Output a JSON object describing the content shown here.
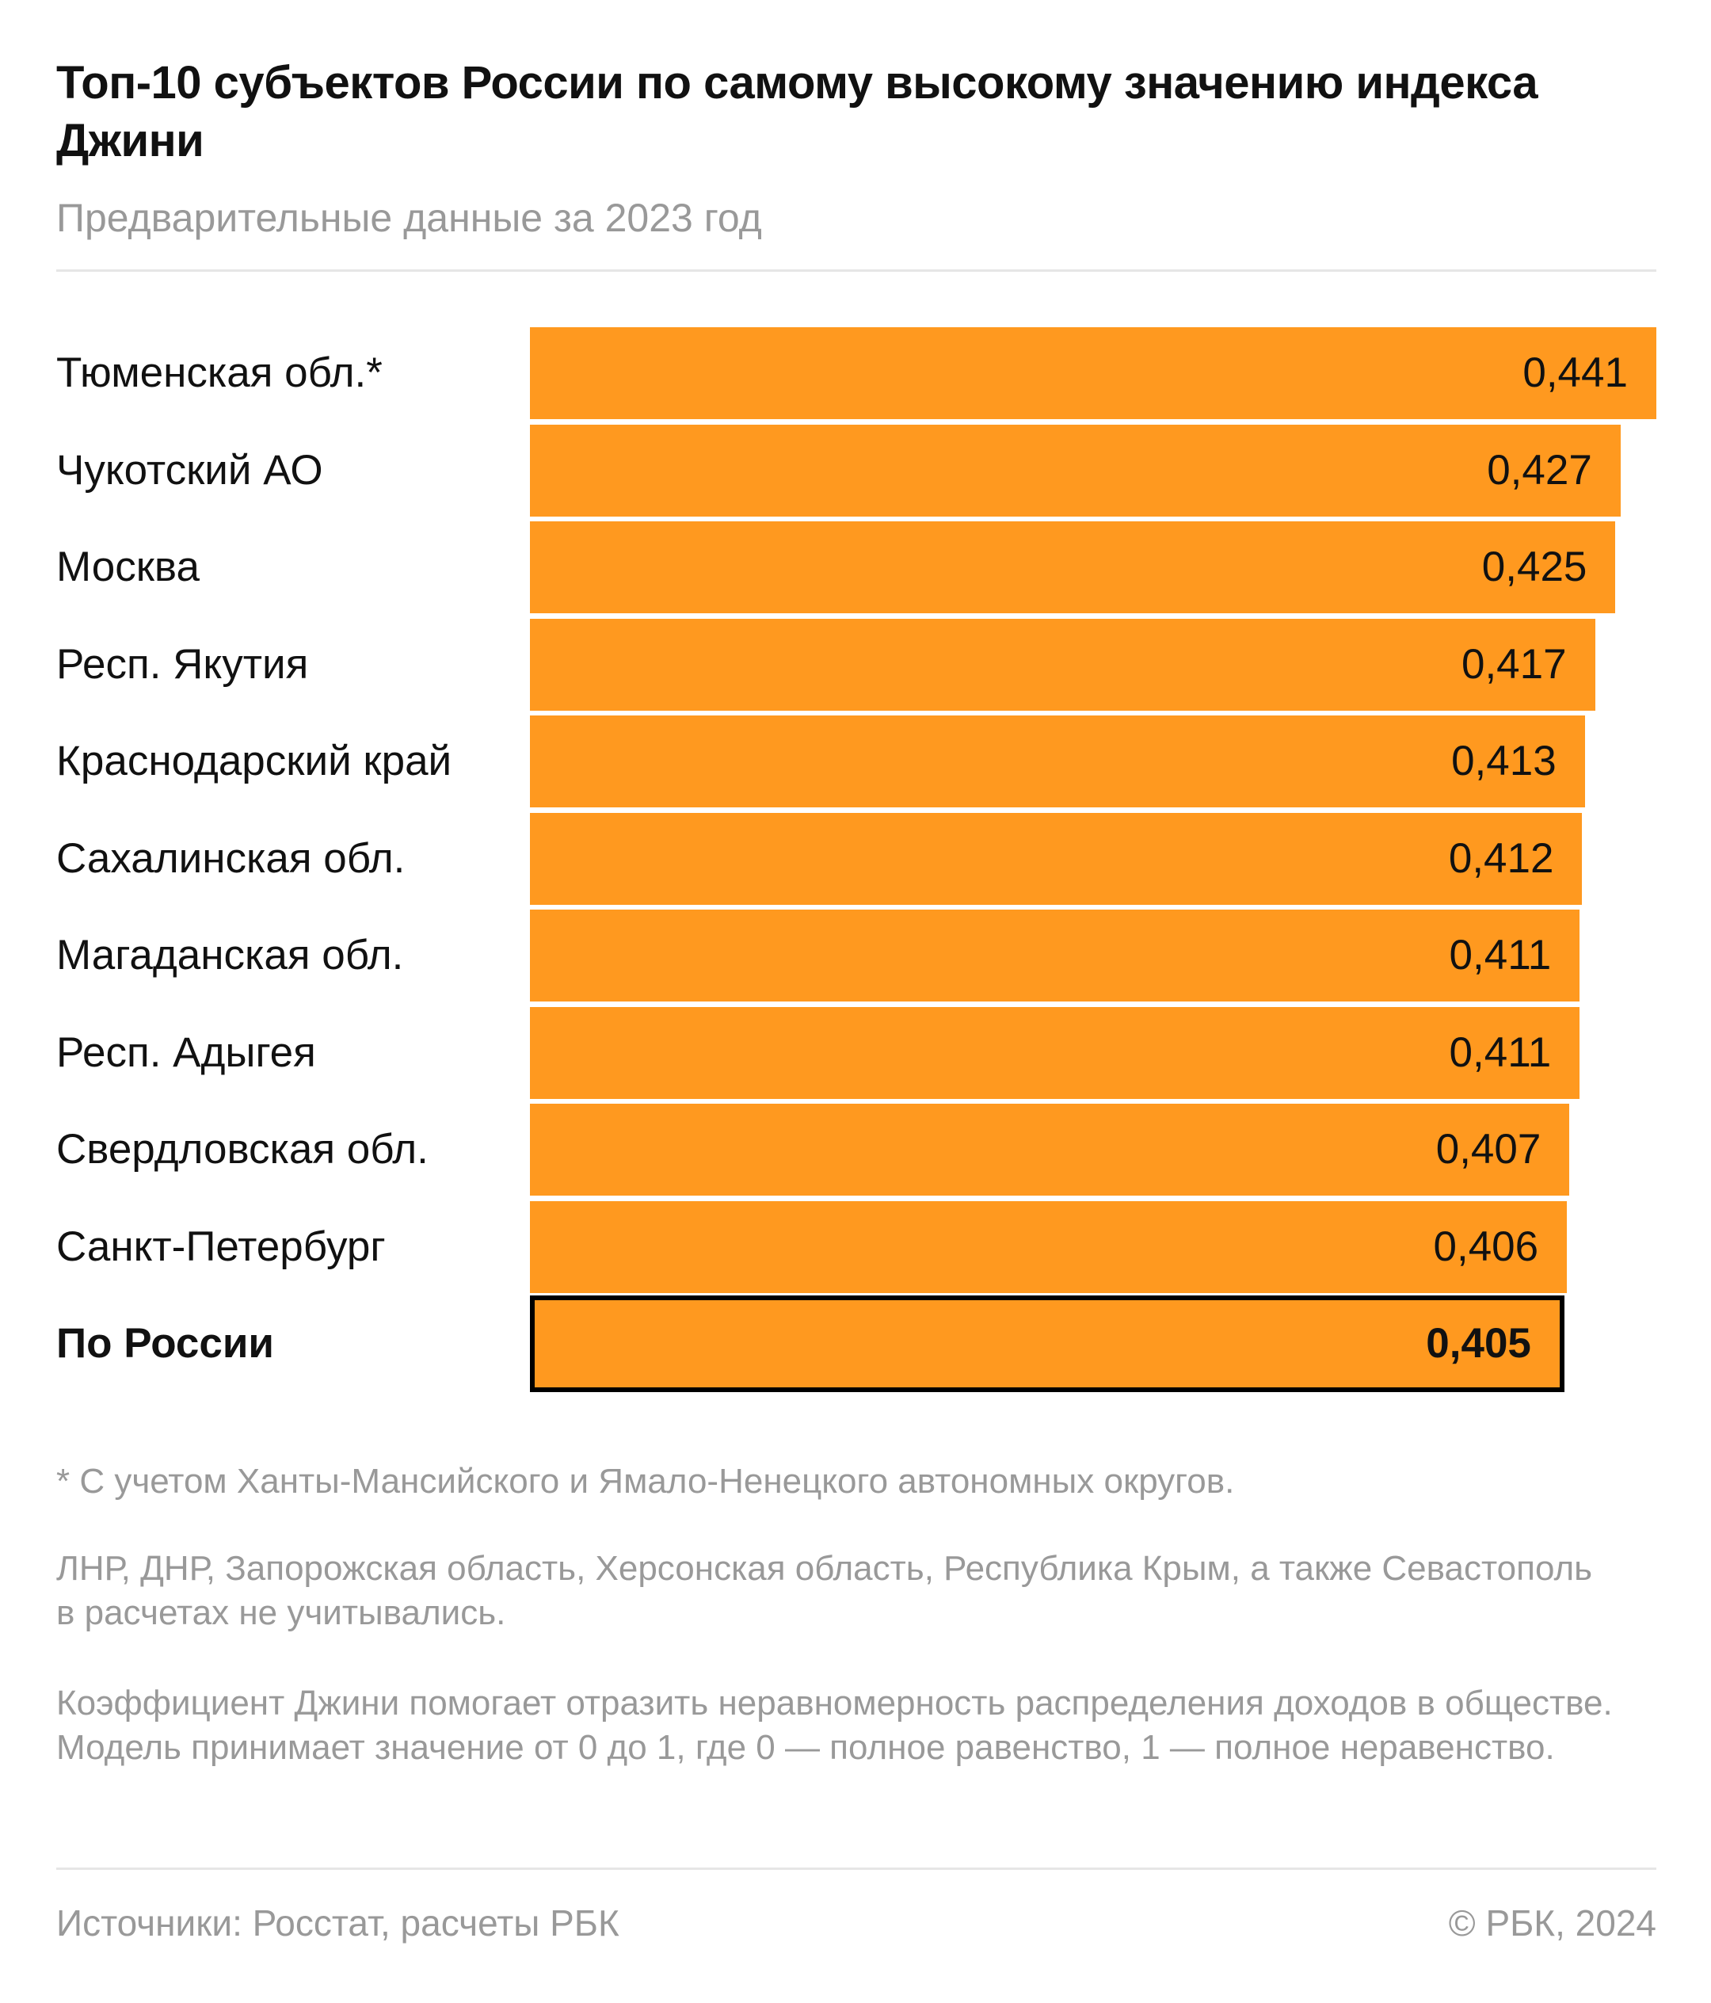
{
  "chart_data": {
    "type": "bar",
    "orientation": "horizontal",
    "title": "Топ-10 субъектов России по самому высокому значению индекса Джини",
    "subtitle": "Предварительные данные за 2023 год",
    "categories": [
      "Тюменская обл.*",
      "Чукотский АО",
      "Москва",
      "Респ. Якутия",
      "Краснодарский край",
      "Сахалинская обл.",
      "Магаданская обл.",
      "Респ. Адыгея",
      "Свердловская обл.",
      "Санкт-Петербург",
      "По России"
    ],
    "values": [
      0.441,
      0.427,
      0.425,
      0.417,
      0.413,
      0.412,
      0.411,
      0.411,
      0.407,
      0.406,
      0.405
    ],
    "value_labels": [
      "0,441",
      "0,427",
      "0,425",
      "0,417",
      "0,413",
      "0,412",
      "0,411",
      "0,411",
      "0,407",
      "0,406",
      "0,405"
    ],
    "highlight": "По России",
    "xlim": [
      0,
      0.441
    ],
    "color": "#ff991f",
    "grid": false
  },
  "notes": [
    "* С учетом Ханты-Мансийского и Ямало-Ненецкого автономных округов.",
    "ЛНР, ДНР, Запорожская область, Херсонская область, Республика Крым, а также Севастополь в расчетах не учитывались.",
    "Коэффициент Джини помогает отразить неравномерность распределения доходов в обществе. Модель принимает значение от 0 до 1, где 0 — полное равенство, 1 — полное неравенство."
  ],
  "footer": {
    "source": "Источники: Росстат, расчеты РБК",
    "copyright": "© РБК, 2024"
  }
}
